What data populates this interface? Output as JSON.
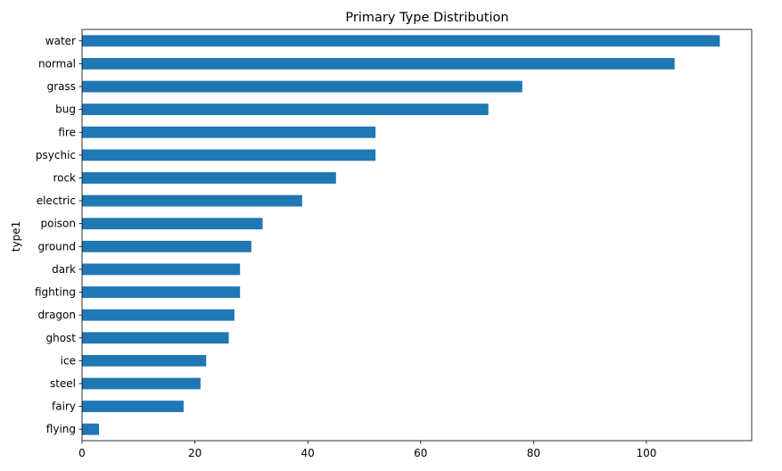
{
  "chart_data": {
    "type": "bar",
    "orientation": "horizontal",
    "title": "Primary Type Distribution",
    "xlabel": "",
    "ylabel": "type1",
    "categories": [
      "water",
      "normal",
      "grass",
      "bug",
      "fire",
      "psychic",
      "rock",
      "electric",
      "poison",
      "ground",
      "dark",
      "fighting",
      "dragon",
      "ghost",
      "ice",
      "steel",
      "fairy",
      "flying"
    ],
    "values": [
      113,
      105,
      78,
      72,
      52,
      52,
      45,
      39,
      32,
      30,
      28,
      28,
      27,
      26,
      22,
      21,
      18,
      3
    ],
    "xlim": [
      0,
      118.65
    ],
    "xticks": [
      0,
      20,
      40,
      60,
      80,
      100
    ],
    "grid": false,
    "legend": "none",
    "bar_color": "#1f77b4"
  }
}
